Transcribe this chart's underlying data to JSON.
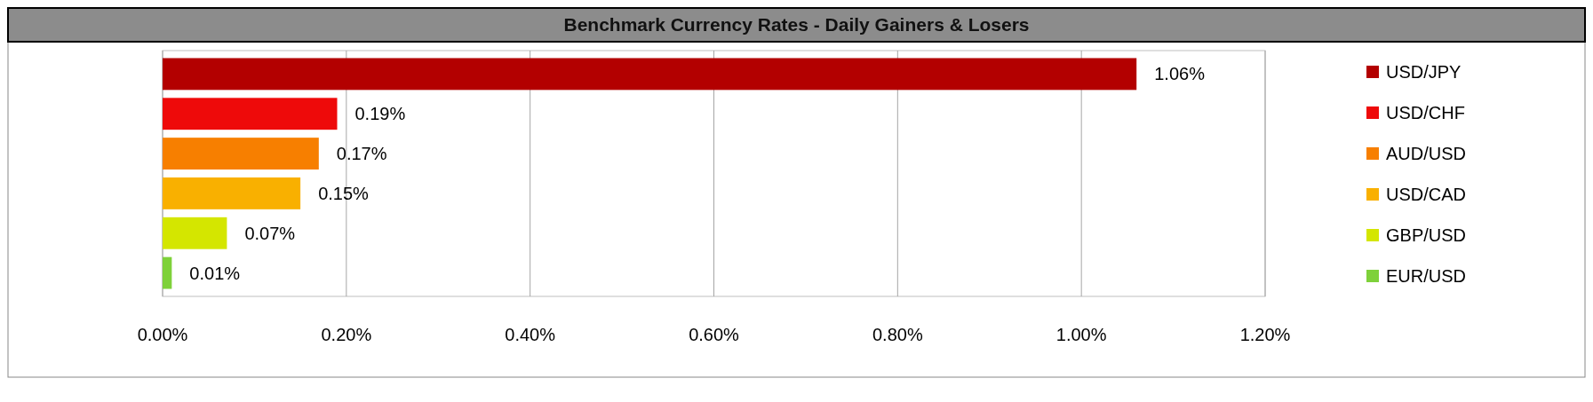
{
  "chart_data": {
    "type": "bar",
    "orientation": "horizontal",
    "title": "Benchmark Currency Rates - Daily Gainers & Losers",
    "categories": [
      null,
      null,
      null,
      null,
      null,
      null
    ],
    "series": [
      {
        "name": "USD/JPY",
        "color": "#b30000",
        "values": [
          1.06,
          null,
          null,
          null,
          null,
          null
        ]
      },
      {
        "name": "USD/CHF",
        "color": "#ee0a0a",
        "values": [
          null,
          0.19,
          null,
          null,
          null,
          null
        ]
      },
      {
        "name": "AUD/USD",
        "color": "#f77f00",
        "values": [
          null,
          null,
          0.17,
          null,
          null,
          null
        ]
      },
      {
        "name": "USD/CAD",
        "color": "#f9b000",
        "values": [
          null,
          null,
          null,
          0.15,
          null,
          null
        ]
      },
      {
        "name": "GBP/USD",
        "color": "#d4e600",
        "values": [
          null,
          null,
          null,
          null,
          0.07,
          null
        ]
      },
      {
        "name": "EUR/USD",
        "color": "#7ed13a",
        "values": [
          null,
          null,
          null,
          null,
          null,
          0.01
        ]
      }
    ],
    "xlim": [
      0,
      1.2
    ],
    "xticks": [
      {
        "value": 0,
        "label": "0.00%"
      },
      {
        "value": 0.2,
        "label": "0.20%"
      },
      {
        "value": 0.4,
        "label": "0.40%"
      },
      {
        "value": 0.6,
        "label": "0.60%"
      },
      {
        "value": 0.8,
        "label": "0.80%"
      },
      {
        "value": 1,
        "label": "1.00%"
      },
      {
        "value": 1.2,
        "label": "1.20%"
      }
    ],
    "value_labels": [
      "1.06%",
      "0.19%",
      "0.17%",
      "0.15%",
      "0.07%",
      "0.01%"
    ],
    "grid": "x",
    "legend": "right"
  }
}
